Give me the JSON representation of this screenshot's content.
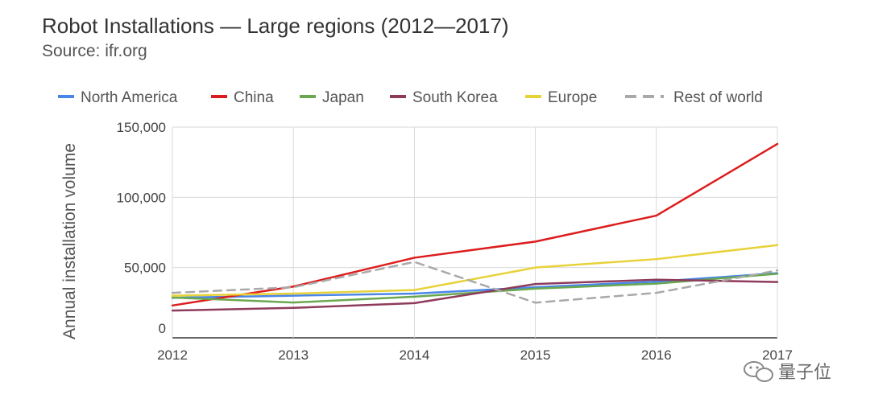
{
  "chart_data": {
    "type": "line",
    "title": "Robot Installations — Large regions (2012—2017)",
    "subtitle": "Source: ifr.org",
    "xlabel": "",
    "ylabel": "Annual installation volume",
    "x": [
      "2012",
      "2013",
      "2014",
      "2015",
      "2016",
      "2017"
    ],
    "ylim": [
      0,
      150000
    ],
    "yticks": [
      0,
      50000,
      100000,
      150000
    ],
    "ytick_labels": [
      "0",
      "50,000",
      "100,000",
      "150,000"
    ],
    "grid": true,
    "legend_position": "top",
    "series": [
      {
        "name": "North America",
        "color": "#4A86E8",
        "dashed": false,
        "values": [
          28500,
          30000,
          31500,
          36000,
          40000,
          46000
        ]
      },
      {
        "name": "China",
        "color": "#DD1D1D",
        "dashed": false,
        "values": [
          23000,
          36500,
          57000,
          68500,
          87000,
          138000
        ]
      },
      {
        "name": "Japan",
        "color": "#6AA84F",
        "dashed": false,
        "values": [
          28700,
          25100,
          29300,
          35000,
          38600,
          45600
        ]
      },
      {
        "name": "South Korea",
        "color": "#8E3B5B",
        "dashed": false,
        "values": [
          19400,
          21300,
          24700,
          38300,
          41400,
          39700
        ]
      },
      {
        "name": "Europe",
        "color": "#E8D23A",
        "dashed": false,
        "values": [
          30000,
          31500,
          34000,
          50000,
          56000,
          66000
        ]
      },
      {
        "name": "Rest of world",
        "color": "#A9A9A9",
        "dashed": true,
        "values": [
          32000,
          36000,
          54000,
          25000,
          32000,
          48000
        ]
      }
    ]
  },
  "watermark": {
    "text": "量子位"
  }
}
